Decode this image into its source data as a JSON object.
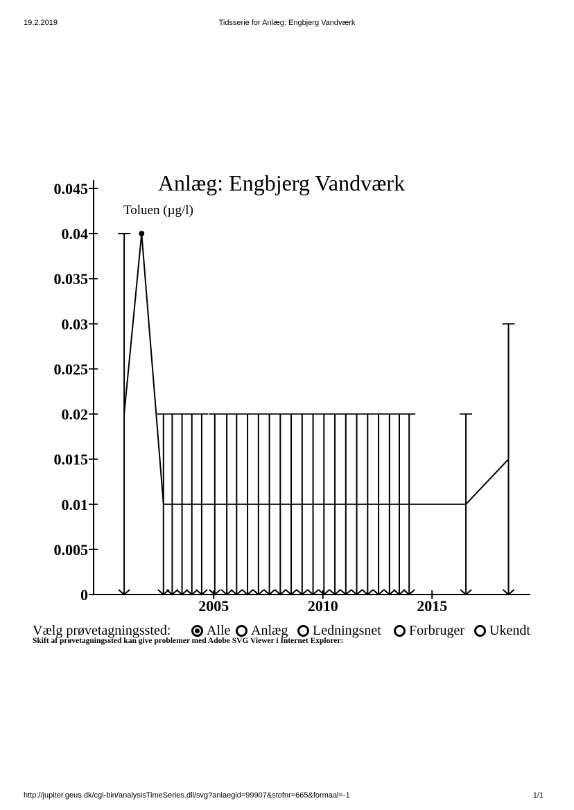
{
  "header": {
    "date": "19.2.2019",
    "title": "Tidsserie for Anlæg: Engbjerg Vandværk"
  },
  "footer": {
    "url": "http://jupiter.geus.dk/cgi-bin/analysisTimeSeries.dll/svg?anlaegid=99907&stofnr=665&formaal=-1",
    "page": "1/1"
  },
  "chart_data": {
    "type": "line",
    "title": "Anlæg: Engbjerg Vandværk",
    "ylabel": "Toluen (µg/l)",
    "xlabel": "",
    "ylim": [
      0,
      0.045
    ],
    "xlim": [
      1999.5,
      2019.5
    ],
    "yticks": [
      "0.045",
      "0.04",
      "0.035",
      "0.03",
      "0.025",
      "0.02",
      "0.015",
      "0.01",
      "0.005",
      "0"
    ],
    "yticks_values": [
      0.045,
      0.04,
      0.035,
      0.03,
      0.025,
      0.02,
      0.015,
      0.01,
      0.005,
      0
    ],
    "xticks": [
      "2005",
      "2010",
      "2015"
    ],
    "xticks_values": [
      2005,
      2010,
      2015
    ],
    "grid": false,
    "series": [
      {
        "points": [
          {
            "x": 2000.9,
            "y": 0.02,
            "bar": 0.04
          },
          {
            "x": 2001.7,
            "y": 0.04,
            "bar": null,
            "marker": true
          },
          {
            "x": 2002.7,
            "y": 0.01,
            "bar": 0.02
          },
          {
            "x": 2003.1,
            "y": 0.01,
            "bar": 0.02
          },
          {
            "x": 2003.55,
            "y": 0.01,
            "bar": 0.02
          },
          {
            "x": 2004.0,
            "y": 0.01,
            "bar": 0.02
          },
          {
            "x": 2004.45,
            "y": 0.01,
            "bar": 0.02
          },
          {
            "x": 2005.05,
            "y": 0.01,
            "bar": 0.02
          },
          {
            "x": 2005.6,
            "y": 0.01,
            "bar": 0.02
          },
          {
            "x": 2006.05,
            "y": 0.01,
            "bar": 0.02
          },
          {
            "x": 2006.55,
            "y": 0.01,
            "bar": 0.02
          },
          {
            "x": 2007.05,
            "y": 0.01,
            "bar": 0.02
          },
          {
            "x": 2007.55,
            "y": 0.01,
            "bar": 0.02
          },
          {
            "x": 2008.05,
            "y": 0.01,
            "bar": 0.02
          },
          {
            "x": 2008.55,
            "y": 0.01,
            "bar": 0.02
          },
          {
            "x": 2009.05,
            "y": 0.01,
            "bar": 0.02
          },
          {
            "x": 2009.55,
            "y": 0.01,
            "bar": 0.02
          },
          {
            "x": 2010.05,
            "y": 0.01,
            "bar": 0.02
          },
          {
            "x": 2010.55,
            "y": 0.01,
            "bar": 0.02
          },
          {
            "x": 2011.05,
            "y": 0.01,
            "bar": 0.02
          },
          {
            "x": 2011.55,
            "y": 0.01,
            "bar": 0.02
          },
          {
            "x": 2012.05,
            "y": 0.01,
            "bar": 0.02
          },
          {
            "x": 2012.55,
            "y": 0.01,
            "bar": 0.02
          },
          {
            "x": 2013.05,
            "y": 0.01,
            "bar": 0.02
          },
          {
            "x": 2013.5,
            "y": 0.01,
            "bar": 0.02
          },
          {
            "x": 2013.95,
            "y": 0.01,
            "bar": 0.02
          },
          {
            "x": 2016.55,
            "y": 0.01,
            "bar": 0.02
          },
          {
            "x": 2018.5,
            "y": 0.015,
            "bar": 0.03
          }
        ]
      }
    ]
  },
  "legend": {
    "label": "Vælg prøvetagningssted:",
    "options": [
      {
        "label": "Alle",
        "selected": true
      },
      {
        "label": "Anlæg",
        "selected": false
      },
      {
        "label": "Ledningsnet",
        "selected": false
      },
      {
        "label": "Forbruger",
        "selected": false
      },
      {
        "label": "Ukendt",
        "selected": false
      }
    ],
    "note": "Skift af prøvetagningssted kan give problemer med Adobe SVG Viewer i Internet Explorer:"
  }
}
